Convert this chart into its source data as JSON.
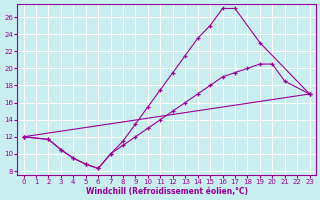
{
  "xlabel": "Windchill (Refroidissement éolien,°C)",
  "bg_color": "#c8eef0",
  "line_color": "#990099",
  "grid_color": "#ffffff",
  "xlim": [
    -0.5,
    23.5
  ],
  "ylim": [
    7.5,
    27.5
  ],
  "yticks": [
    8,
    10,
    12,
    14,
    16,
    18,
    20,
    22,
    24,
    26
  ],
  "xticks": [
    0,
    1,
    2,
    3,
    4,
    5,
    6,
    7,
    8,
    9,
    10,
    11,
    12,
    13,
    14,
    15,
    16,
    17,
    18,
    19,
    20,
    21,
    22,
    23
  ],
  "line1_x": [
    0,
    2,
    3,
    4,
    5,
    6,
    7,
    8,
    9,
    10,
    11,
    12,
    13,
    14,
    15,
    16,
    17,
    19,
    23
  ],
  "line1_y": [
    12,
    11.7,
    10.5,
    9.5,
    8.8,
    8.3,
    10.0,
    11.5,
    13.5,
    15.5,
    17.5,
    19.5,
    21.5,
    23.5,
    25.0,
    27.0,
    27.0,
    23.0,
    17.0
  ],
  "line2_x": [
    0,
    2,
    3,
    4,
    5,
    6,
    7,
    8,
    9,
    10,
    11,
    12,
    13,
    14,
    15,
    16,
    17,
    18,
    19,
    20,
    21,
    23
  ],
  "line2_y": [
    12,
    11.7,
    10.5,
    9.5,
    8.8,
    8.3,
    10.0,
    11.0,
    12.0,
    13.0,
    14.0,
    15.0,
    16.0,
    17.0,
    18.0,
    19.0,
    19.5,
    20.0,
    20.5,
    20.5,
    18.5,
    17.0
  ],
  "line3_x": [
    0,
    23
  ],
  "line3_y": [
    12,
    17.0
  ]
}
